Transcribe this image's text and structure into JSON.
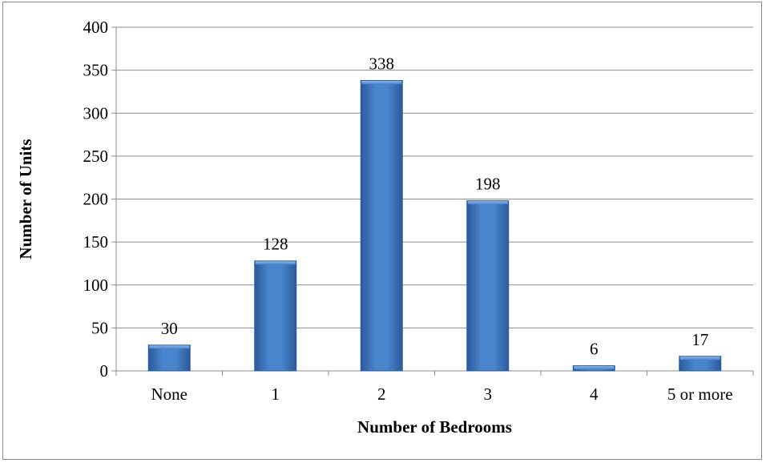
{
  "chart_data": {
    "type": "bar",
    "title": "",
    "xlabel": "Number of Bedrooms",
    "ylabel": "Number of Units",
    "categories": [
      "None",
      "1",
      "2",
      "3",
      "4",
      "5 or more"
    ],
    "values": [
      30,
      128,
      338,
      198,
      6,
      17
    ],
    "data_labels": [
      "30",
      "128",
      "338",
      "198",
      "6",
      "17"
    ],
    "ylim": [
      0,
      400
    ],
    "yticks": [
      0,
      50,
      100,
      150,
      200,
      250,
      300,
      350,
      400
    ],
    "grid": true,
    "legend": "none",
    "bar_color": "#3f72b8"
  }
}
